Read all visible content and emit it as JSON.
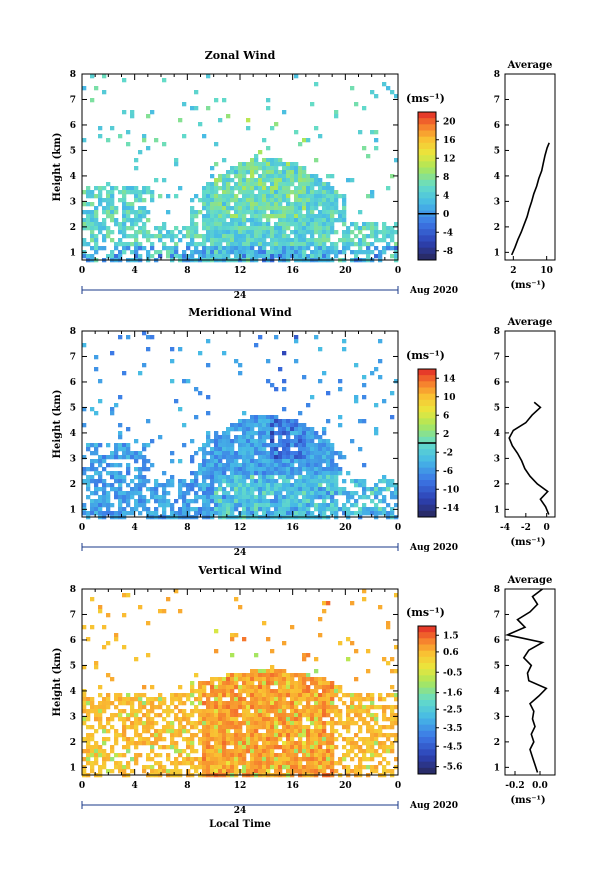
{
  "chart_data": [
    {
      "type": "heatmap",
      "title": "Zonal Wind",
      "ylabel": "Height (km)",
      "xlim": [
        0,
        24
      ],
      "ylim": [
        0.7,
        8
      ],
      "x_ticks": [
        "0",
        "4",
        "8",
        "12",
        "16",
        "20",
        "0"
      ],
      "y_ticks": [
        "1",
        "2",
        "3",
        "4",
        "5",
        "6",
        "7",
        "8"
      ],
      "day_label": "24",
      "month_label": "Aug 2020",
      "colorbar": {
        "unit": "(ms⁻¹)",
        "min": -10,
        "max": 22,
        "ticks": [
          "20",
          "16",
          "12",
          "8",
          "4",
          "0",
          "-4",
          "-8"
        ],
        "tick_values": [
          20,
          16,
          12,
          8,
          4,
          0,
          -4,
          -8
        ],
        "zero_line": 0
      },
      "field_description": "Mostly 0-8 m/s below 3 km, up to ~12 m/s near 12-16 LT at 3-4 km",
      "profile": {
        "title": "Average",
        "xlabel": "(ms⁻¹)",
        "x_ticks": [
          "2",
          "10"
        ],
        "xlim": [
          0,
          12
        ],
        "height": [
          0.9,
          1.2,
          1.5,
          1.8,
          2.1,
          2.4,
          2.7,
          3.0,
          3.3,
          3.6,
          3.9,
          4.2,
          4.5,
          4.8,
          5.1,
          5.3
        ],
        "value": [
          1.6,
          2.4,
          3.1,
          3.9,
          4.6,
          5.3,
          5.8,
          6.4,
          6.9,
          7.6,
          8.1,
          8.8,
          9.2,
          9.6,
          10.1,
          10.6
        ]
      }
    },
    {
      "type": "heatmap",
      "title": "Meridional Wind",
      "ylabel": "Height (km)",
      "xlim": [
        0,
        24
      ],
      "ylim": [
        0.7,
        8
      ],
      "x_ticks": [
        "0",
        "4",
        "8",
        "12",
        "16",
        "20",
        "0"
      ],
      "y_ticks": [
        "1",
        "2",
        "3",
        "4",
        "5",
        "6",
        "7",
        "8"
      ],
      "day_label": "24",
      "month_label": "Aug 2020",
      "colorbar": {
        "unit": "(ms⁻¹)",
        "min": -16,
        "max": 16,
        "ticks": [
          "14",
          "10",
          "6",
          "2",
          "-2",
          "-6",
          "-10",
          "-14"
        ],
        "tick_values": [
          14,
          10,
          6,
          2,
          -2,
          -6,
          -10,
          -14
        ],
        "zero_line": 0
      },
      "field_description": "Mostly -2 to -8 m/s, strongest negative near 14-16 LT around 4 km; positive patches below 2.5 km",
      "profile": {
        "title": "Average",
        "xlabel": "(ms⁻¹)",
        "x_ticks": [
          "-4",
          "-2",
          "0"
        ],
        "xlim": [
          -4,
          0.8
        ],
        "height": [
          0.8,
          1.1,
          1.4,
          1.7,
          2.0,
          2.3,
          2.6,
          2.9,
          3.2,
          3.5,
          3.8,
          4.1,
          4.4,
          4.7,
          5.0,
          5.2
        ],
        "value": [
          0.2,
          -0.1,
          -0.6,
          0.1,
          -0.9,
          -1.6,
          -2.1,
          -2.4,
          -2.8,
          -3.3,
          -3.6,
          -3.2,
          -2.0,
          -1.4,
          -0.6,
          -1.2
        ]
      }
    },
    {
      "type": "heatmap",
      "title": "Vertical Wind",
      "ylabel": "Height (km)",
      "xlabel": "Local Time",
      "xlim": [
        0,
        24
      ],
      "ylim": [
        0.7,
        8
      ],
      "x_ticks": [
        "0",
        "4",
        "8",
        "12",
        "16",
        "20",
        "0"
      ],
      "y_ticks": [
        "1",
        "2",
        "3",
        "4",
        "5",
        "6",
        "7",
        "8"
      ],
      "day_label": "24",
      "month_label": "Aug 2020",
      "colorbar": {
        "unit": "(ms⁻¹)",
        "min": -6,
        "max": 2,
        "ticks": [
          "1.5",
          "0.6",
          "-0.5",
          "-1.6",
          "-2.5",
          "-3.5",
          "-4.5",
          "-5.6"
        ],
        "tick_values": [
          1.5,
          0.6,
          -0.5,
          -1.6,
          -2.5,
          -3.5,
          -4.5,
          -5.6
        ]
      },
      "field_description": "Mostly weak positive (0 to 1 m/s) with orange streaks 8-20 LT below 4.5 km",
      "profile": {
        "title": "Average",
        "xlabel": "(ms⁻¹)",
        "x_ticks": [
          "-0.2",
          "0.0"
        ],
        "xlim": [
          -0.28,
          0.12
        ],
        "height": [
          0.8,
          1.1,
          1.4,
          1.7,
          2.0,
          2.3,
          2.6,
          2.9,
          3.2,
          3.5,
          3.8,
          4.1,
          4.4,
          4.7,
          5.0,
          5.3,
          5.6,
          5.9,
          6.2,
          6.5,
          6.8,
          7.1,
          7.4,
          7.7,
          8.0
        ],
        "value": [
          -0.02,
          -0.04,
          -0.06,
          -0.08,
          -0.05,
          -0.07,
          -0.04,
          -0.06,
          -0.05,
          -0.08,
          -0.01,
          0.05,
          -0.09,
          -0.1,
          -0.07,
          -0.13,
          -0.09,
          0.02,
          -0.26,
          -0.12,
          -0.18,
          -0.08,
          -0.02,
          -0.06,
          0.02
        ]
      }
    }
  ]
}
